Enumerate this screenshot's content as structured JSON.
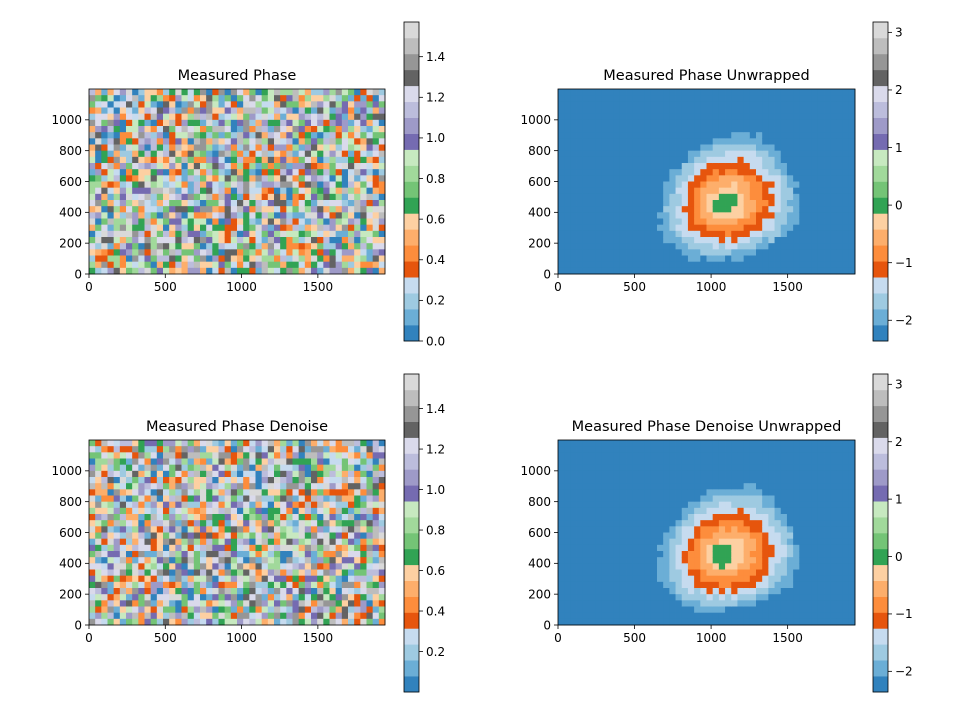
{
  "chart_data": [
    {
      "type": "heatmap",
      "title": "Measured Phase",
      "x_ticks": [
        0,
        500,
        1000,
        1500
      ],
      "y_ticks": [
        0,
        200,
        400,
        600,
        800,
        1000
      ],
      "xlim": [
        0,
        1940
      ],
      "ylim": [
        0,
        1200
      ],
      "colormap": "tab20c",
      "colorbar": {
        "range": [
          0,
          1.5708
        ],
        "ticks": [
          0.0,
          0.2,
          0.4,
          0.6,
          0.8,
          1.0,
          1.2,
          1.4
        ],
        "tick_labels": [
          "0.0",
          "0.2",
          "0.4",
          "0.6",
          "0.8",
          "1.0",
          "1.2",
          "1.4"
        ]
      },
      "pattern": "wrapped",
      "noise": 0.35
    },
    {
      "type": "heatmap",
      "title": "Measured Phase Unwrapped",
      "x_ticks": [
        0,
        500,
        1000,
        1500
      ],
      "y_ticks": [
        0,
        200,
        400,
        600,
        800,
        1000
      ],
      "xlim": [
        0,
        1940
      ],
      "ylim": [
        0,
        1200
      ],
      "colormap": "tab20c",
      "colorbar": {
        "range": [
          -2.36,
          3.18
        ],
        "ticks": [
          -2,
          -1,
          0,
          1,
          2,
          3
        ],
        "tick_labels": [
          "−2",
          "−1",
          "0",
          "1",
          "2",
          "3"
        ]
      },
      "pattern": "unwrapped",
      "noise": 0.12
    },
    {
      "type": "heatmap",
      "title": "Measured Phase Denoise",
      "x_ticks": [
        0,
        500,
        1000,
        1500
      ],
      "y_ticks": [
        0,
        200,
        400,
        600,
        800,
        1000
      ],
      "xlim": [
        0,
        1940
      ],
      "ylim": [
        0,
        1200
      ],
      "colormap": "tab20c",
      "colorbar": {
        "range": [
          0.0,
          1.5708
        ],
        "ticks": [
          0.2,
          0.4,
          0.6,
          0.8,
          1.0,
          1.2,
          1.4
        ],
        "tick_labels": [
          "0.2",
          "0.4",
          "0.6",
          "0.8",
          "1.0",
          "1.2",
          "1.4"
        ]
      },
      "pattern": "wrapped",
      "noise": 0.28
    },
    {
      "type": "heatmap",
      "title": "Measured Phase Denoise Unwrapped",
      "x_ticks": [
        0,
        500,
        1000,
        1500
      ],
      "y_ticks": [
        0,
        200,
        400,
        600,
        800,
        1000
      ],
      "xlim": [
        0,
        1940
      ],
      "ylim": [
        0,
        1200
      ],
      "colormap": "tab20c",
      "colorbar": {
        "range": [
          -2.36,
          3.18
        ],
        "ticks": [
          -2,
          -1,
          0,
          1,
          2,
          3
        ],
        "tick_labels": [
          "−2",
          "−1",
          "0",
          "1",
          "2",
          "3"
        ]
      },
      "pattern": "unwrapped_denoise",
      "noise": 0.1
    }
  ],
  "tab20c_colors": [
    "#3182bd",
    "#6baed6",
    "#9ecae1",
    "#c6dbef",
    "#e6550d",
    "#fd8d3c",
    "#fdae6b",
    "#fdd0a2",
    "#31a354",
    "#74c476",
    "#a1d99b",
    "#c7e9c0",
    "#756bb1",
    "#9e9ac8",
    "#bcbddc",
    "#dadaeb",
    "#636363",
    "#969696",
    "#bdbdbd",
    "#d9d9d9"
  ]
}
